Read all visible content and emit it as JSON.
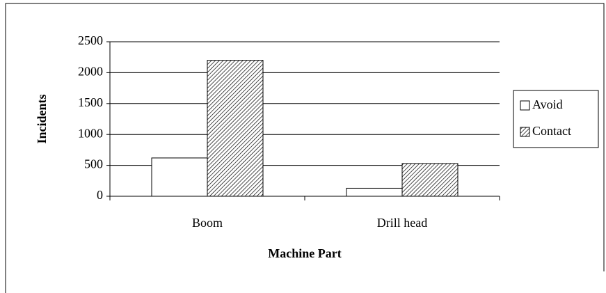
{
  "chart_data": {
    "type": "bar",
    "categories": [
      "Boom",
      "Drill head"
    ],
    "series": [
      {
        "name": "Avoid",
        "color": "#ffffff",
        "values": [
          620,
          130
        ]
      },
      {
        "name": "Contact",
        "color": "#ffffff",
        "pattern": "diagonal",
        "values": [
          2200,
          530
        ]
      }
    ],
    "ylim": [
      0,
      2500
    ],
    "yticks": [
      0,
      500,
      1000,
      1500,
      2000,
      2500
    ],
    "grid": true,
    "xlabel": "Machine Part",
    "ylabel": "Incidents",
    "legend": "right"
  }
}
